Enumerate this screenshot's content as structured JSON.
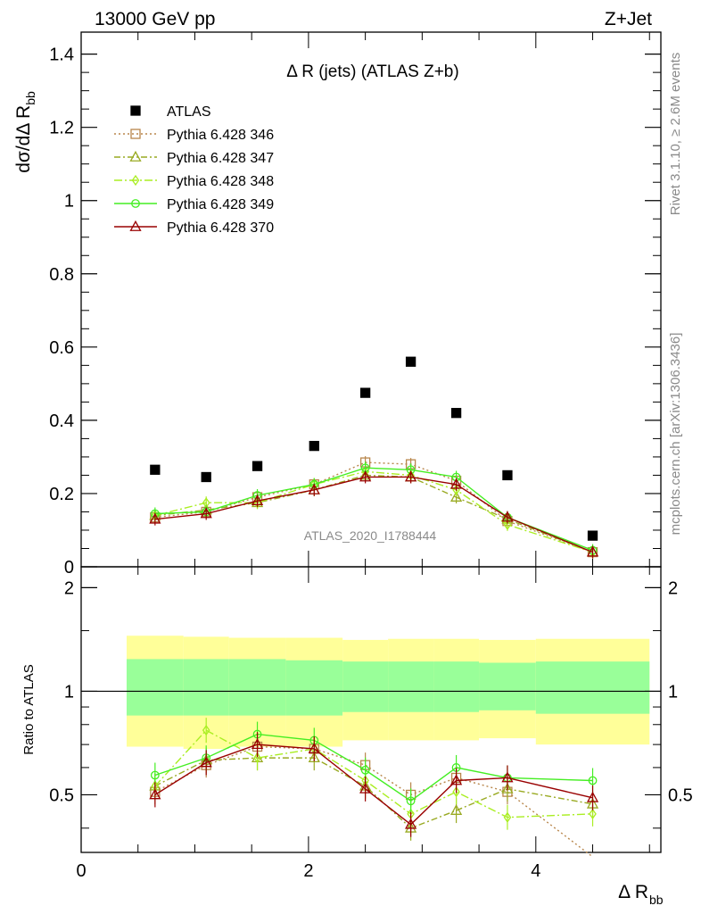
{
  "header": {
    "left": "13000 GeV pp",
    "right": "Z+Jet"
  },
  "side_text": {
    "rivet": "Rivet 3.1.10, ≥ 2.6M events",
    "mcplots": "mcplots.cern.ch [arXiv:1306.3436]"
  },
  "chart_data": {
    "type": "line",
    "title": "Δ R (jets) (ATLAS Z+b)",
    "analysis_label": "ATLAS_2020_I1788444",
    "xlabel": "Δ R",
    "xlabel_sub": "bb",
    "ylabel": "dσ/dΔ R",
    "ylabel_sub": "bb",
    "ratio_ylabel": "Ratio to ATLAS",
    "xlim": [
      0,
      5.1
    ],
    "main_ylim": [
      0,
      1.46
    ],
    "ratio_ylim": [
      0.34,
      2.3
    ],
    "x_ticks": [
      0,
      2,
      4
    ],
    "main_y_ticks": [
      0,
      0.2,
      0.4,
      0.6,
      0.8,
      1,
      1.2,
      1.4
    ],
    "main_y_tick_labels": [
      "0",
      "0.2",
      "0.4",
      "0.6",
      "0.8",
      "1",
      "1.2",
      "1.4"
    ],
    "ratio_y_ticks": [
      0.5,
      1,
      2
    ],
    "ratio_y_tick_labels": [
      "0.5",
      "1",
      "2"
    ],
    "x": [
      0.65,
      1.1,
      1.55,
      2.05,
      2.5,
      2.9,
      3.3,
      3.75,
      4.5
    ],
    "bin_edges": [
      0.4,
      0.9,
      1.3,
      1.8,
      2.3,
      2.7,
      3.1,
      3.5,
      4.0,
      5.0
    ],
    "atlas": {
      "name": "ATLAS",
      "color": "#000000",
      "values": [
        0.265,
        0.245,
        0.275,
        0.33,
        0.475,
        0.56,
        0.42,
        0.25,
        0.085
      ]
    },
    "band_outer": [
      [
        0.69,
        1.45
      ],
      [
        0.68,
        1.44
      ],
      [
        0.69,
        1.43
      ],
      [
        0.69,
        1.43
      ],
      [
        0.72,
        1.41
      ],
      [
        0.72,
        1.42
      ],
      [
        0.72,
        1.42
      ],
      [
        0.73,
        1.41
      ],
      [
        0.7,
        1.42
      ]
    ],
    "band_inner": [
      [
        0.85,
        1.24
      ],
      [
        0.85,
        1.24
      ],
      [
        0.85,
        1.24
      ],
      [
        0.85,
        1.23
      ],
      [
        0.87,
        1.22
      ],
      [
        0.87,
        1.22
      ],
      [
        0.87,
        1.22
      ],
      [
        0.88,
        1.21
      ],
      [
        0.86,
        1.22
      ]
    ],
    "band_colors": {
      "outer": "#ffff99",
      "inner": "#99ff99"
    },
    "series": [
      {
        "name": "Pythia 6.428 346",
        "color": "#b8864b",
        "dash": "2,3",
        "marker": "square",
        "values": [
          0.135,
          0.15,
          0.19,
          0.225,
          0.285,
          0.28,
          0.235,
          0.125,
          0.04
        ],
        "ratio": [
          0.51,
          0.61,
          0.69,
          0.68,
          0.61,
          0.5,
          0.56,
          0.51,
          0.33
        ]
      },
      {
        "name": "Pythia 6.428 347",
        "color": "#99aa22",
        "dash": "7,3,2,3",
        "marker": "triangle",
        "values": [
          0.14,
          0.155,
          0.175,
          0.21,
          0.25,
          0.245,
          0.19,
          0.13,
          0.04
        ],
        "ratio": [
          0.53,
          0.63,
          0.64,
          0.64,
          0.53,
          0.4,
          0.45,
          0.52,
          0.47
        ]
      },
      {
        "name": "Pythia 6.428 348",
        "color": "#aaee22",
        "dash": "9,3,2,3",
        "marker": "diamond",
        "values": [
          0.14,
          0.175,
          0.175,
          0.225,
          0.26,
          0.25,
          0.21,
          0.115,
          0.04
        ],
        "ratio": [
          0.53,
          0.77,
          0.64,
          0.68,
          0.55,
          0.44,
          0.51,
          0.43,
          0.44
        ]
      },
      {
        "name": "Pythia 6.428 349",
        "color": "#44ee22",
        "dash": "",
        "marker": "circle",
        "values": [
          0.145,
          0.15,
          0.195,
          0.225,
          0.27,
          0.265,
          0.245,
          0.135,
          0.045
        ],
        "ratio": [
          0.57,
          0.64,
          0.75,
          0.72,
          0.59,
          0.48,
          0.6,
          0.56,
          0.55
        ]
      },
      {
        "name": "Pythia 6.428 370",
        "color": "#990000",
        "dash": "",
        "marker": "triangle",
        "values": [
          0.13,
          0.145,
          0.18,
          0.21,
          0.245,
          0.245,
          0.225,
          0.135,
          0.04
        ],
        "ratio": [
          0.5,
          0.62,
          0.7,
          0.68,
          0.52,
          0.41,
          0.55,
          0.56,
          0.49
        ]
      }
    ],
    "grid": false,
    "legend_position": "top-left"
  }
}
